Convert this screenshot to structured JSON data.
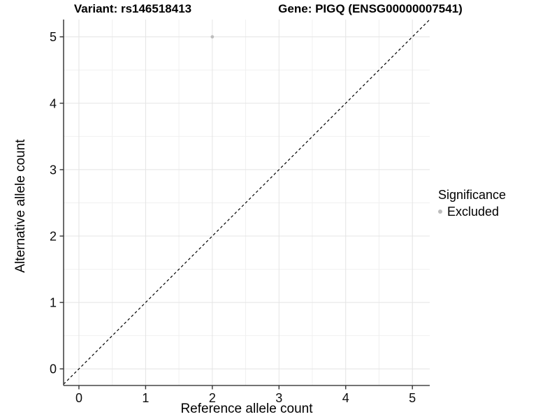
{
  "chart_data": {
    "type": "scatter",
    "titles": {
      "left": "Variant: rs146518413",
      "right": "Gene: PIGQ (ENSG00000007541)"
    },
    "xlabel": "Reference allele count",
    "ylabel": "Alternative allele count",
    "x_ticks": [
      0,
      1,
      2,
      3,
      4,
      5
    ],
    "y_ticks": [
      0,
      1,
      2,
      3,
      4,
      5
    ],
    "xlim": [
      -0.23,
      5.26
    ],
    "ylim": [
      -0.25,
      5.26
    ],
    "minor_grid_step": 0.5,
    "grid": true,
    "legend_position": "right",
    "identity_line": {
      "style": "dashed",
      "color": "#000000",
      "from": -0.23,
      "to": 5.26
    },
    "series": [
      {
        "name": "Excluded",
        "color": "#bdbdbd",
        "points": [
          {
            "x": 2,
            "y": 5
          }
        ]
      }
    ],
    "legend": {
      "title": "Significance",
      "items": [
        {
          "label": "Excluded",
          "color": "#bdbdbd"
        }
      ]
    }
  },
  "colors": {
    "background": "#ffffff",
    "axis_line": "#464646",
    "tick_mark": "#333333",
    "tick_text": "#0d0d0d",
    "grid_major": "#e4e4e4",
    "grid_minor": "#f0f0f0",
    "excluded_point": "#bdbdbd",
    "identity_line": "#000000"
  }
}
